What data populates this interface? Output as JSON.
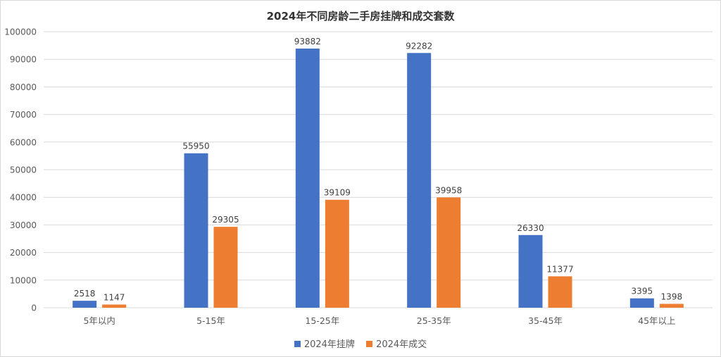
{
  "chart_data": {
    "type": "bar",
    "title": "2024年不同房龄二手房挂牌和成交套数",
    "categories": [
      "5年以内",
      "5-15年",
      "15-25年",
      "25-35年",
      "35-45年",
      "45年以上"
    ],
    "series": [
      {
        "name": "2024年挂牌",
        "color": "#4472c4",
        "values": [
          2518,
          55950,
          93882,
          92282,
          26330,
          3395
        ]
      },
      {
        "name": "2024年成交",
        "color": "#ed7d31",
        "values": [
          1147,
          29305,
          39109,
          39958,
          11377,
          1398
        ]
      }
    ],
    "ylim": [
      0,
      100000
    ],
    "yticks": [
      0,
      10000,
      20000,
      30000,
      40000,
      50000,
      60000,
      70000,
      80000,
      90000,
      100000
    ],
    "grid": true,
    "legend_position": "bottom"
  }
}
